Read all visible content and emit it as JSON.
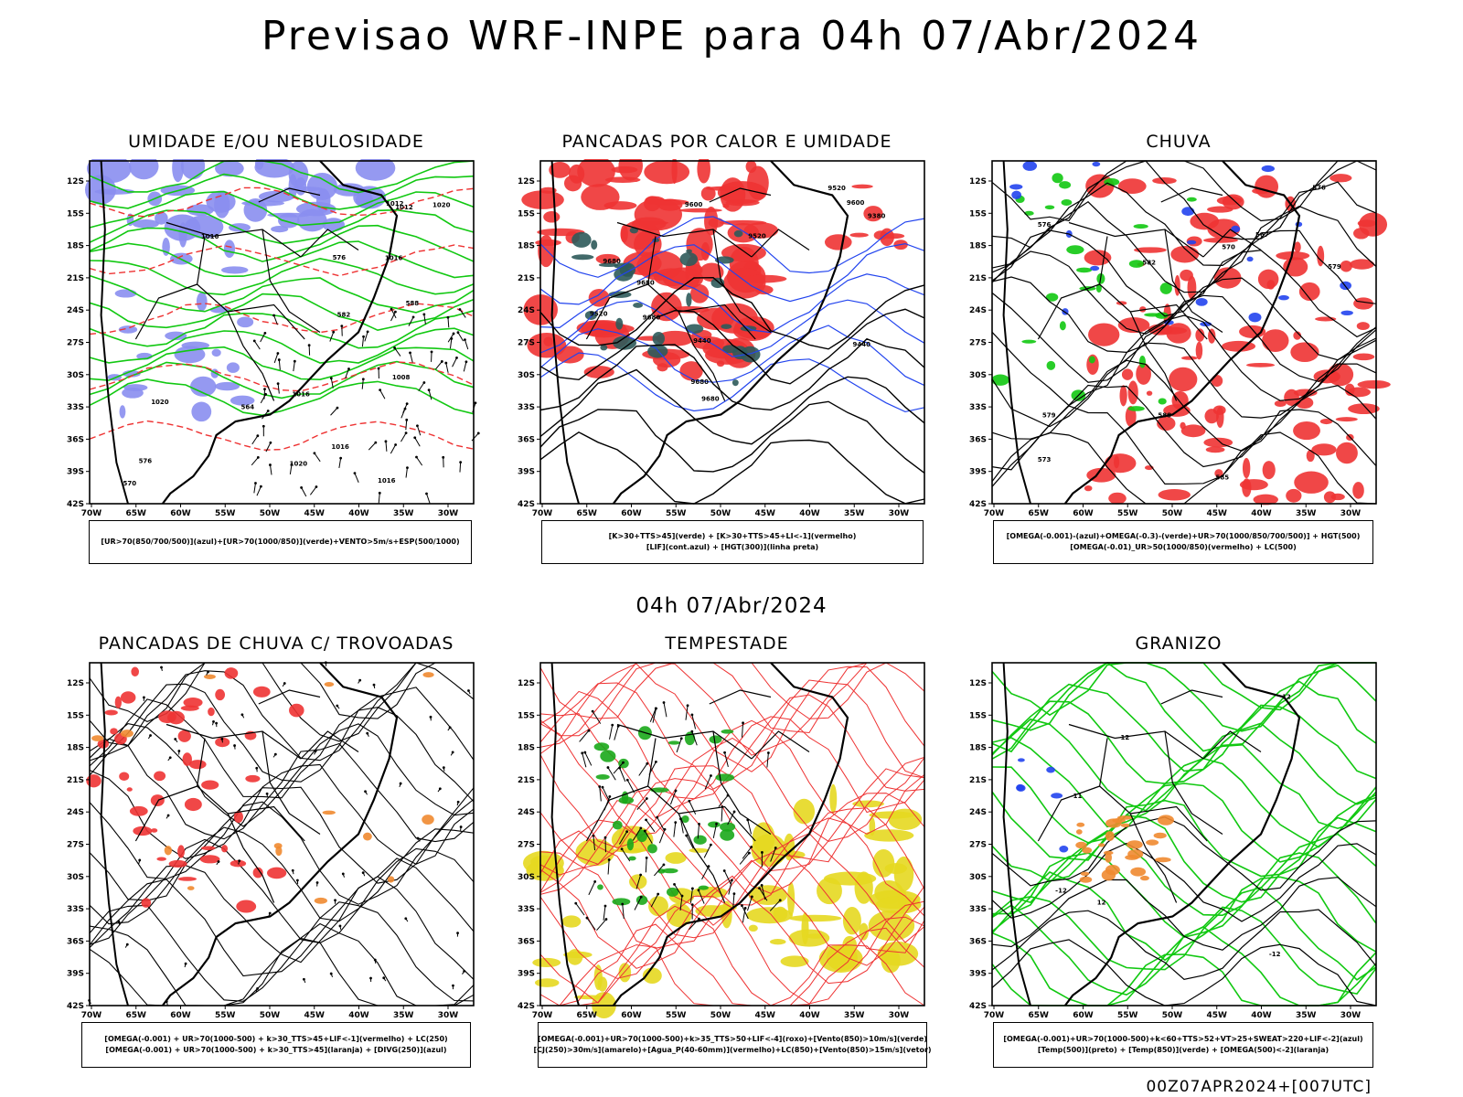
{
  "page": {
    "main_title": "Previsao WRF-INPE  para 04h 07/Abr/2024",
    "mid_title": "04h 07/Abr/2024",
    "footer": "00Z07APR2024+[007UTC]"
  },
  "axes": {
    "lat_labels": [
      "12S",
      "15S",
      "18S",
      "21S",
      "24S",
      "27S",
      "30S",
      "33S",
      "36S",
      "39S",
      "42S"
    ],
    "lon_labels": [
      "70W",
      "65W",
      "60W",
      "55W",
      "50W",
      "45W",
      "40W",
      "35W",
      "30W"
    ]
  },
  "colors": {
    "blue_fill": "#8a8ef0",
    "green_contour": "#11c811",
    "red": "#ee3333",
    "dark_teal": "#2e5a5a",
    "orange": "#f08a30",
    "yellow": "#e6d820",
    "blue_contour": "#2244ee"
  },
  "panels": [
    {
      "id": "umidade",
      "title": "UMIDADE E/OU NEBULOSIDADE",
      "legend": [
        "[UR>70(850/700/500)](azul)+[UR>70(1000/850)](verde)+VENTO>5m/s+ESP(500/1000)"
      ],
      "contour_labels": [
        "1012",
        "1016",
        "1020",
        "1008",
        "1016",
        "1020",
        "1012",
        "1016",
        "1016",
        "1020",
        "1016",
        "576",
        "576",
        "564",
        "588",
        "570",
        "582"
      ]
    },
    {
      "id": "pancadas-calor",
      "title": "PANCADAS POR CALOR E UMIDADE",
      "legend": [
        "[K>30+TTS>45](verde) + [K>30+TTS>45+LI<-1](vermelho)",
        "[LIF](cont.azul) + [HGT(300)](linha preta)"
      ],
      "contour_labels": [
        "9680",
        "9680",
        "9680",
        "9680",
        "9600",
        "9600",
        "9520",
        "9520",
        "9520",
        "9440",
        "9440",
        "9380",
        "9680"
      ]
    },
    {
      "id": "chuva",
      "title": "CHUVA",
      "legend": [
        "[OMEGA(-0.001)-(azul)+OMEGA(-0.3)-(verde)+UR>70(1000/850/700/500)] + HGT(500)",
        "[OMEGA(-0.01)_UR>50(1000/850)(vermelho) + LC(500)"
      ],
      "contour_labels": [
        "585",
        "582",
        "579",
        "576",
        "573",
        "570",
        "567",
        "579",
        "576",
        "588"
      ]
    },
    {
      "id": "pancadas-trovoadas",
      "title": "PANCADAS DE CHUVA C/ TROVOADAS",
      "legend": [
        "[OMEGA(-0.001) + UR>70(1000-500) + k>30_TTS>45+LIF<-1](vermelho) + LC(250)",
        "[OMEGA(-0.001) + UR>70(1000-500) + k>30_TTS>45](laranja) + [DIVG(250)](azul)"
      ],
      "contour_labels": []
    },
    {
      "id": "tempestade",
      "title": "TEMPESTADE",
      "legend": [
        "[OMEGA(-0.001)+UR>70(1000-500)+k>35_TTS>50+LIF<-4](roxo)+[Vento(850)>10m/s](verde)",
        "[CJ(250)>30m/s](amarelo)+[Agua_P(40-60mm)](vermelho)+LC(850)+[Vento(850)>15m/s](vetor)"
      ],
      "contour_labels": []
    },
    {
      "id": "granizo",
      "title": "GRANIZO",
      "legend": [
        "[OMEGA(-0.001)+UR>70(1000-500)+k<60+TTS>52+VT>25+SWEAT>220+LIF<-2](azul)",
        "[Temp(500)](preto) + [Temp(850)](verde) + [OMEGA(500)<-2](laranja)"
      ],
      "contour_labels": [
        "12",
        "12",
        "12",
        "-12",
        "-11",
        "-12"
      ]
    }
  ]
}
